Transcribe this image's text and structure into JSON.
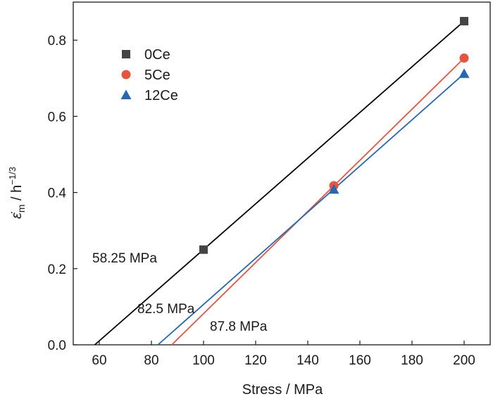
{
  "chart_data": {
    "type": "scatter",
    "xlabel": "Stress / MPa",
    "ylabel": {
      "symbol": "ε̇",
      "subscript": "m",
      "unit": " / h",
      "exponent": "−1/3"
    },
    "xlim": [
      50,
      210
    ],
    "ylim": [
      0,
      0.9
    ],
    "xticks": [
      60,
      80,
      100,
      120,
      140,
      160,
      180,
      200
    ],
    "yticks": [
      0.0,
      0.2,
      0.4,
      0.6,
      0.8
    ],
    "xtick_labels": [
      "60",
      "80",
      "100",
      "120",
      "140",
      "160",
      "180",
      "200"
    ],
    "ytick_labels": [
      "0.0",
      "0.2",
      "0.4",
      "0.6",
      "0.8"
    ],
    "grid": false,
    "legend_position": "top-left",
    "series": [
      {
        "name": "0Ce",
        "color": "#454545",
        "line_color": "#000000",
        "marker": "square",
        "x": [
          100,
          200
        ],
        "y": [
          0.25,
          0.85
        ],
        "fit_x": [
          58.25,
          200
        ],
        "fit_y": [
          0.0,
          0.85
        ]
      },
      {
        "name": "5Ce",
        "color": "#e8533f",
        "line_color": "#e8533f",
        "marker": "circle",
        "x": [
          150,
          200
        ],
        "y": [
          0.418,
          0.753
        ],
        "fit_x": [
          87.8,
          200
        ],
        "fit_y": [
          0.0,
          0.753
        ]
      },
      {
        "name": "12Ce",
        "color": "#2468b4",
        "line_color": "#2468b4",
        "marker": "triangle",
        "x": [
          150,
          200
        ],
        "y": [
          0.408,
          0.712
        ],
        "fit_x": [
          82.5,
          200
        ],
        "fit_y": [
          0.0,
          0.712
        ]
      }
    ],
    "annotations": [
      {
        "text": "58.25 MPa",
        "x": 58.25,
        "y": 0.0
      },
      {
        "text": "82.5 MPa",
        "x": 82.5,
        "y": 0.0
      },
      {
        "text": "87.8 MPa",
        "x": 87.8,
        "y": 0.0
      }
    ]
  }
}
